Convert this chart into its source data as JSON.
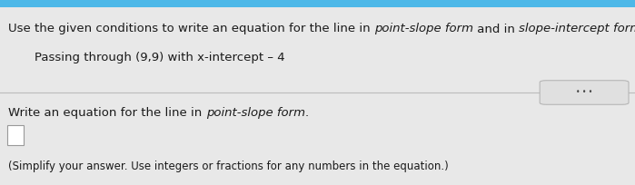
{
  "bg_color": "#e8e8e8",
  "line1_part1": "Use the given conditions to write an equation for the line in ",
  "line1_italic1": "point-slope form",
  "line1_part2": " and in ",
  "line1_italic2": "slope-intercept form",
  "line1_part3": ".",
  "line2": "Passing through (9,9) with x-intercept – 4",
  "line3_part1": "Write an equation for the line in ",
  "line3_italic": "point-slope form",
  "line3_part2": ".",
  "line4": "(Simplify your answer. Use integers or fractions for any numbers in the equation.)",
  "dots_text": "• • •",
  "top_blue": "#4db8e8",
  "separator_color": "#bbbbbb",
  "text_color": "#1a1a1a",
  "fs_main": 9.5,
  "fs_small": 8.5
}
